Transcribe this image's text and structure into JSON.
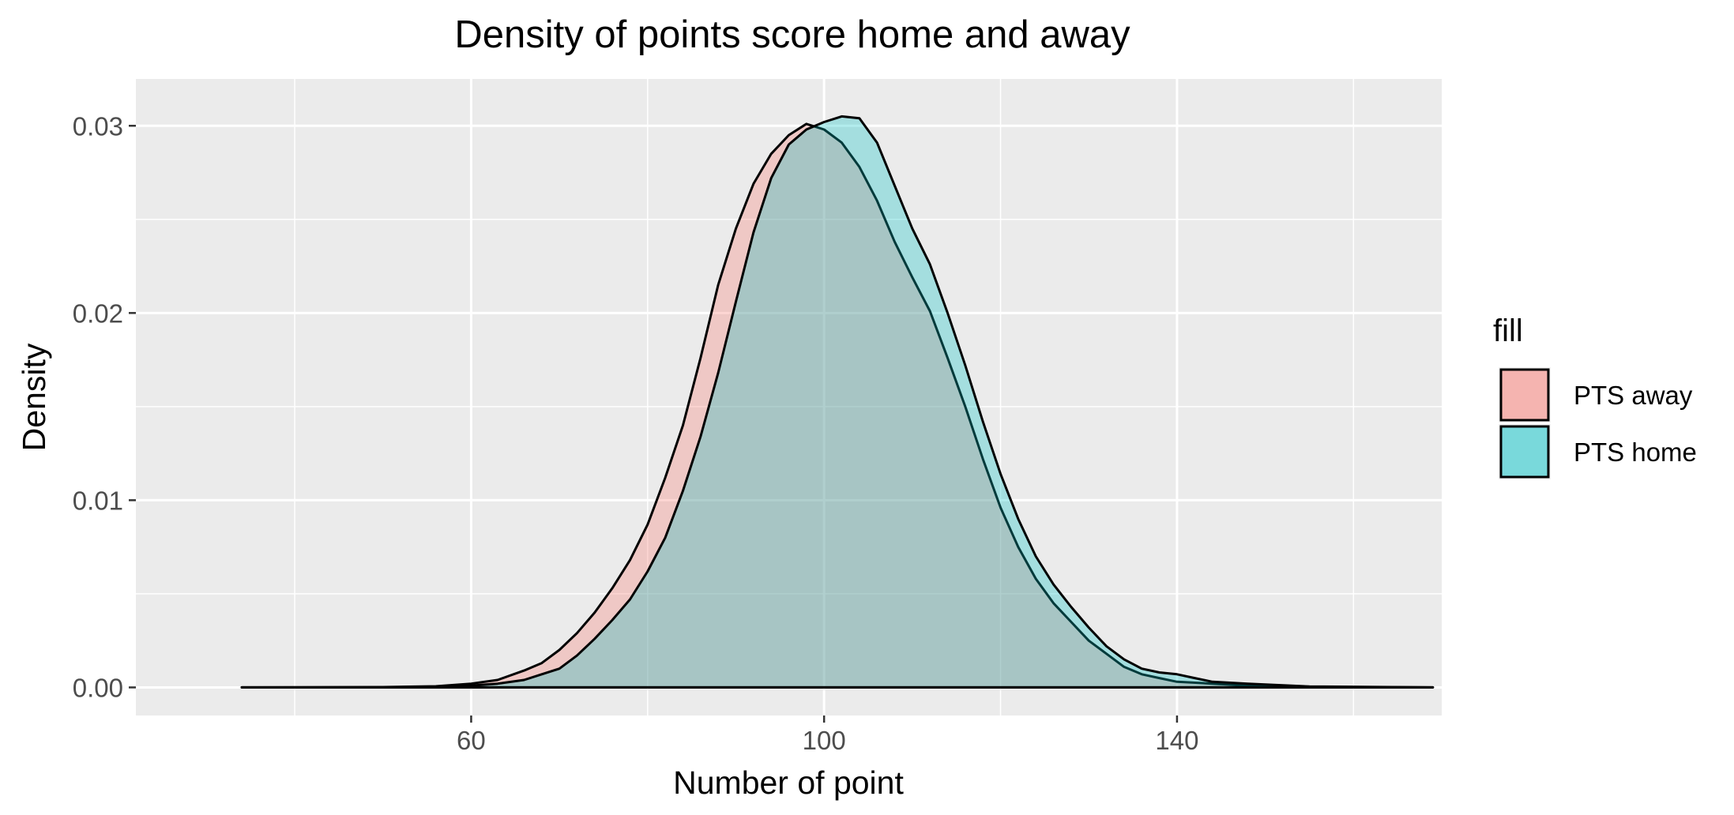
{
  "chart_data": {
    "type": "area",
    "title": "Density of points score home and away",
    "xlabel": "Number of point",
    "ylabel": "Density",
    "xlim": [
      22,
      170
    ],
    "ylim": [
      -0.0015,
      0.0325
    ],
    "xticks": [
      60,
      100,
      140
    ],
    "xtick_labels": [
      "60",
      "100",
      "140"
    ],
    "yticks": [
      0,
      0.01,
      0.02,
      0.03
    ],
    "ytick_labels": [
      "0.00",
      "0.01",
      "0.02",
      "0.03"
    ],
    "grid": true,
    "legend": {
      "title": "fill",
      "position": "right",
      "entries": [
        "PTS away",
        "PTS home"
      ]
    },
    "series": [
      {
        "name": "PTS away",
        "color": "#F8766D",
        "points": [
          [
            34,
            0
          ],
          [
            50,
            2e-05
          ],
          [
            56,
            6e-05
          ],
          [
            60,
            0.0002
          ],
          [
            63,
            0.0004
          ],
          [
            66,
            0.0009
          ],
          [
            68,
            0.0013
          ],
          [
            70,
            0.002
          ],
          [
            72,
            0.0029
          ],
          [
            74,
            0.004
          ],
          [
            76,
            0.0053
          ],
          [
            78,
            0.0068
          ],
          [
            80,
            0.0087
          ],
          [
            82,
            0.0112
          ],
          [
            84,
            0.014
          ],
          [
            86,
            0.0176
          ],
          [
            88,
            0.0215
          ],
          [
            90,
            0.0245
          ],
          [
            92,
            0.0269
          ],
          [
            94,
            0.0285
          ],
          [
            96,
            0.0295
          ],
          [
            98,
            0.0301
          ],
          [
            100,
            0.0298
          ],
          [
            102,
            0.0291
          ],
          [
            104,
            0.0278
          ],
          [
            106,
            0.026
          ],
          [
            108,
            0.0238
          ],
          [
            110,
            0.0219
          ],
          [
            112,
            0.0201
          ],
          [
            114,
            0.0176
          ],
          [
            116,
            0.015
          ],
          [
            118,
            0.0122
          ],
          [
            120,
            0.0096
          ],
          [
            122,
            0.0075
          ],
          [
            124,
            0.0058
          ],
          [
            126,
            0.0045
          ],
          [
            128,
            0.0035
          ],
          [
            130,
            0.0025
          ],
          [
            132,
            0.0018
          ],
          [
            134,
            0.0011
          ],
          [
            136,
            0.0007
          ],
          [
            138,
            0.0005
          ],
          [
            140,
            0.0003
          ],
          [
            144,
            0.0002
          ],
          [
            148,
            0.0001
          ],
          [
            155,
            3e-05
          ],
          [
            169,
            0
          ]
        ]
      },
      {
        "name": "PTS home",
        "color": "#00BFC4",
        "points": [
          [
            34,
            0
          ],
          [
            50,
            1e-05
          ],
          [
            56,
            4e-05
          ],
          [
            60,
            0.0001
          ],
          [
            63,
            0.0002
          ],
          [
            66,
            0.0004
          ],
          [
            68,
            0.0007
          ],
          [
            70,
            0.001
          ],
          [
            72,
            0.0017
          ],
          [
            74,
            0.0026
          ],
          [
            76,
            0.0036
          ],
          [
            78,
            0.0047
          ],
          [
            80,
            0.0062
          ],
          [
            82,
            0.008
          ],
          [
            84,
            0.0105
          ],
          [
            86,
            0.0134
          ],
          [
            88,
            0.0168
          ],
          [
            90,
            0.0206
          ],
          [
            92,
            0.0243
          ],
          [
            94,
            0.0272
          ],
          [
            96,
            0.029
          ],
          [
            98,
            0.0298
          ],
          [
            100,
            0.0302
          ],
          [
            102,
            0.0305
          ],
          [
            104,
            0.0304
          ],
          [
            106,
            0.0291
          ],
          [
            108,
            0.0268
          ],
          [
            110,
            0.0245
          ],
          [
            112,
            0.0226
          ],
          [
            114,
            0.02
          ],
          [
            116,
            0.0172
          ],
          [
            118,
            0.0142
          ],
          [
            120,
            0.0114
          ],
          [
            122,
            0.009
          ],
          [
            124,
            0.007
          ],
          [
            126,
            0.0055
          ],
          [
            128,
            0.0043
          ],
          [
            130,
            0.0032
          ],
          [
            132,
            0.0022
          ],
          [
            134,
            0.0015
          ],
          [
            136,
            0.001
          ],
          [
            138,
            0.0008
          ],
          [
            140,
            0.0007
          ],
          [
            142,
            0.0005
          ],
          [
            144,
            0.0003
          ],
          [
            148,
            0.0002
          ],
          [
            155,
            5e-05
          ],
          [
            169,
            0
          ]
        ]
      }
    ]
  }
}
